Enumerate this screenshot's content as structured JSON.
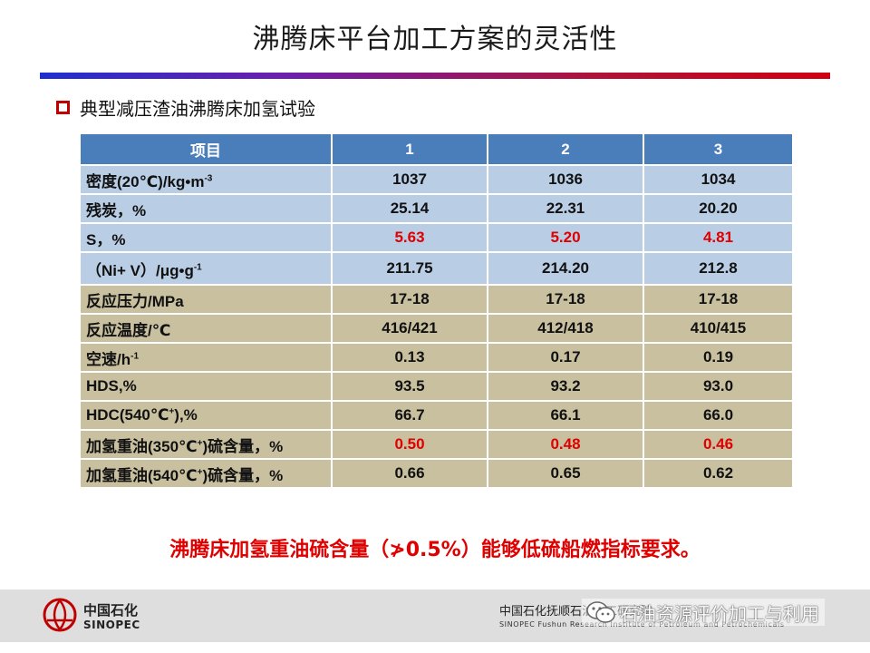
{
  "slide": {
    "title": "沸腾床平台加工方案的灵活性",
    "section_heading": "典型减压渣油沸腾床加氢试验",
    "conclusion": "沸腾床加氢重油硫含量（≯0.5%）能够低硫船燃指标要求。"
  },
  "table": {
    "headers": [
      "项目",
      "1",
      "2",
      "3"
    ],
    "rows": [
      {
        "label": "密度(20℃)/kg•m",
        "sup": "-3",
        "values": [
          "1037",
          "1036",
          "1034"
        ],
        "group": "feed",
        "red": false
      },
      {
        "label": "残炭，%",
        "sup": "",
        "values": [
          "25.14",
          "22.31",
          "20.20"
        ],
        "group": "feed",
        "red": false
      },
      {
        "label": "S，%",
        "sup": "",
        "values": [
          "5.63",
          "5.20",
          "4.81"
        ],
        "group": "feed",
        "red": true
      },
      {
        "label": "（Ni+ V）/μg•g",
        "sup": "-1",
        "values": [
          "211.75",
          "214.20",
          "212.8"
        ],
        "group": "feed",
        "red": false
      },
      {
        "label": "反应压力/MPa",
        "sup": "",
        "values": [
          "17-18",
          "17-18",
          "17-18"
        ],
        "group": "prod",
        "red": false
      },
      {
        "label": "反应温度/℃",
        "sup": "",
        "values": [
          "416/421",
          "412/418",
          "410/415"
        ],
        "group": "prod",
        "red": false
      },
      {
        "label": "空速/h",
        "sup": "-1",
        "values": [
          "0.13",
          "0.17",
          "0.19"
        ],
        "group": "prod",
        "red": false
      },
      {
        "label": "HDS,%",
        "sup": "",
        "values": [
          "93.5",
          "93.2",
          "93.0"
        ],
        "group": "prod",
        "red": false
      },
      {
        "label": "HDC(540℃",
        "sup": "+",
        "suffix": "),%",
        "values": [
          "66.7",
          "66.1",
          "66.0"
        ],
        "group": "prod",
        "red": false
      },
      {
        "label": "加氢重油(350℃",
        "sup": "+",
        "suffix": ")硫含量，%",
        "values": [
          "0.50",
          "0.48",
          "0.46"
        ],
        "group": "prod",
        "red": true
      },
      {
        "label": "加氢重油(540℃",
        "sup": "+",
        "suffix": ")硫含量，%",
        "values": [
          "0.66",
          "0.65",
          "0.62"
        ],
        "group": "prod",
        "red": false
      }
    ]
  },
  "footer": {
    "logo_cn": "中国石化",
    "logo_en": "SINOPEC",
    "institute_cn": "中国石化抚顺石油化工研究院",
    "institute_en": "SINOPEC  Fushun Research Institute of Petroleum and Petrochemicals",
    "watermark_text": "石油资源评价加工与利用"
  },
  "colors": {
    "header_blue": "#4a7ebb",
    "feed_row": "#b9cde5",
    "process_row": "#c9c0a0",
    "accent_red": "#e00000"
  },
  "icons": [
    "square-bullet-icon",
    "sinopec-logo-icon",
    "wechat-icon"
  ]
}
